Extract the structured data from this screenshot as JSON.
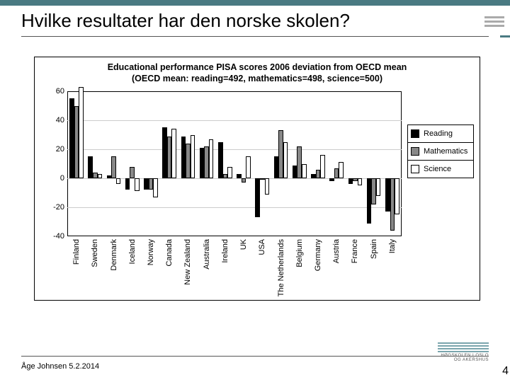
{
  "page": {
    "title": "Hvilke resultater har den norske skolen?",
    "footer_author": "Åge Johnsen 5.2.2014",
    "page_number": "4",
    "accent_color": "#4a7a82",
    "logo_text": "HØGSKOLEN I OSLO OG AKERSHUS"
  },
  "chart": {
    "type": "bar",
    "title_line1": "Educational performance PISA scores 2006 deviation from OECD mean",
    "title_line2": "(OECD mean: reading=492, mathematics=498, science=500)",
    "title_fontsize": 12.5,
    "background_color": "#ffffff",
    "border_color": "#000000",
    "grid_color": "#cccccc",
    "ylim": [
      -40,
      60
    ],
    "ytick_step": 20,
    "yticks": [
      -40,
      -20,
      0,
      20,
      40,
      60
    ],
    "label_fontsize": 11,
    "bar_border_color": "#000000",
    "group_gap_ratio": 0.25,
    "series": [
      {
        "key": "reading",
        "label": "Reading",
        "color": "#000000"
      },
      {
        "key": "mathematics",
        "label": "Mathematics",
        "color": "#888888"
      },
      {
        "key": "science",
        "label": "Science",
        "color": "#ffffff"
      }
    ],
    "categories": [
      {
        "label": "Finland",
        "values": {
          "reading": 55,
          "mathematics": 50,
          "science": 63
        }
      },
      {
        "label": "Sweden",
        "values": {
          "reading": 15,
          "mathematics": 4,
          "science": 3
        }
      },
      {
        "label": "Denmark",
        "values": {
          "reading": 2,
          "mathematics": 15,
          "science": -4
        }
      },
      {
        "label": "Iceland",
        "values": {
          "reading": -8,
          "mathematics": 8,
          "science": -9
        }
      },
      {
        "label": "Norway",
        "values": {
          "reading": -8,
          "mathematics": -8,
          "science": -13
        }
      },
      {
        "label": "Canada",
        "values": {
          "reading": 35,
          "mathematics": 29,
          "science": 34
        }
      },
      {
        "label": "New Zealand",
        "values": {
          "reading": 29,
          "mathematics": 24,
          "science": 30
        }
      },
      {
        "label": "Australia",
        "values": {
          "reading": 21,
          "mathematics": 22,
          "science": 27
        }
      },
      {
        "label": "Ireland",
        "values": {
          "reading": 25,
          "mathematics": 3,
          "science": 8
        }
      },
      {
        "label": "UK",
        "values": {
          "reading": 3,
          "mathematics": -3,
          "science": 15
        }
      },
      {
        "label": "USA",
        "values": {
          "reading": -27,
          "mathematics": 0,
          "science": -11
        }
      },
      {
        "label": "The Netherlands",
        "values": {
          "reading": 15,
          "mathematics": 33,
          "science": 25
        }
      },
      {
        "label": "Belgium",
        "values": {
          "reading": 9,
          "mathematics": 22,
          "science": 10
        }
      },
      {
        "label": "Germany",
        "values": {
          "reading": 3,
          "mathematics": 6,
          "science": 16
        }
      },
      {
        "label": "Austria",
        "values": {
          "reading": -2,
          "mathematics": 7,
          "science": 11
        }
      },
      {
        "label": "France",
        "values": {
          "reading": -4,
          "mathematics": -2,
          "science": -5
        }
      },
      {
        "label": "Spain",
        "values": {
          "reading": -31,
          "mathematics": -18,
          "science": -12
        }
      },
      {
        "label": "Italy",
        "values": {
          "reading": -23,
          "mathematics": -36,
          "science": -25
        }
      }
    ]
  }
}
